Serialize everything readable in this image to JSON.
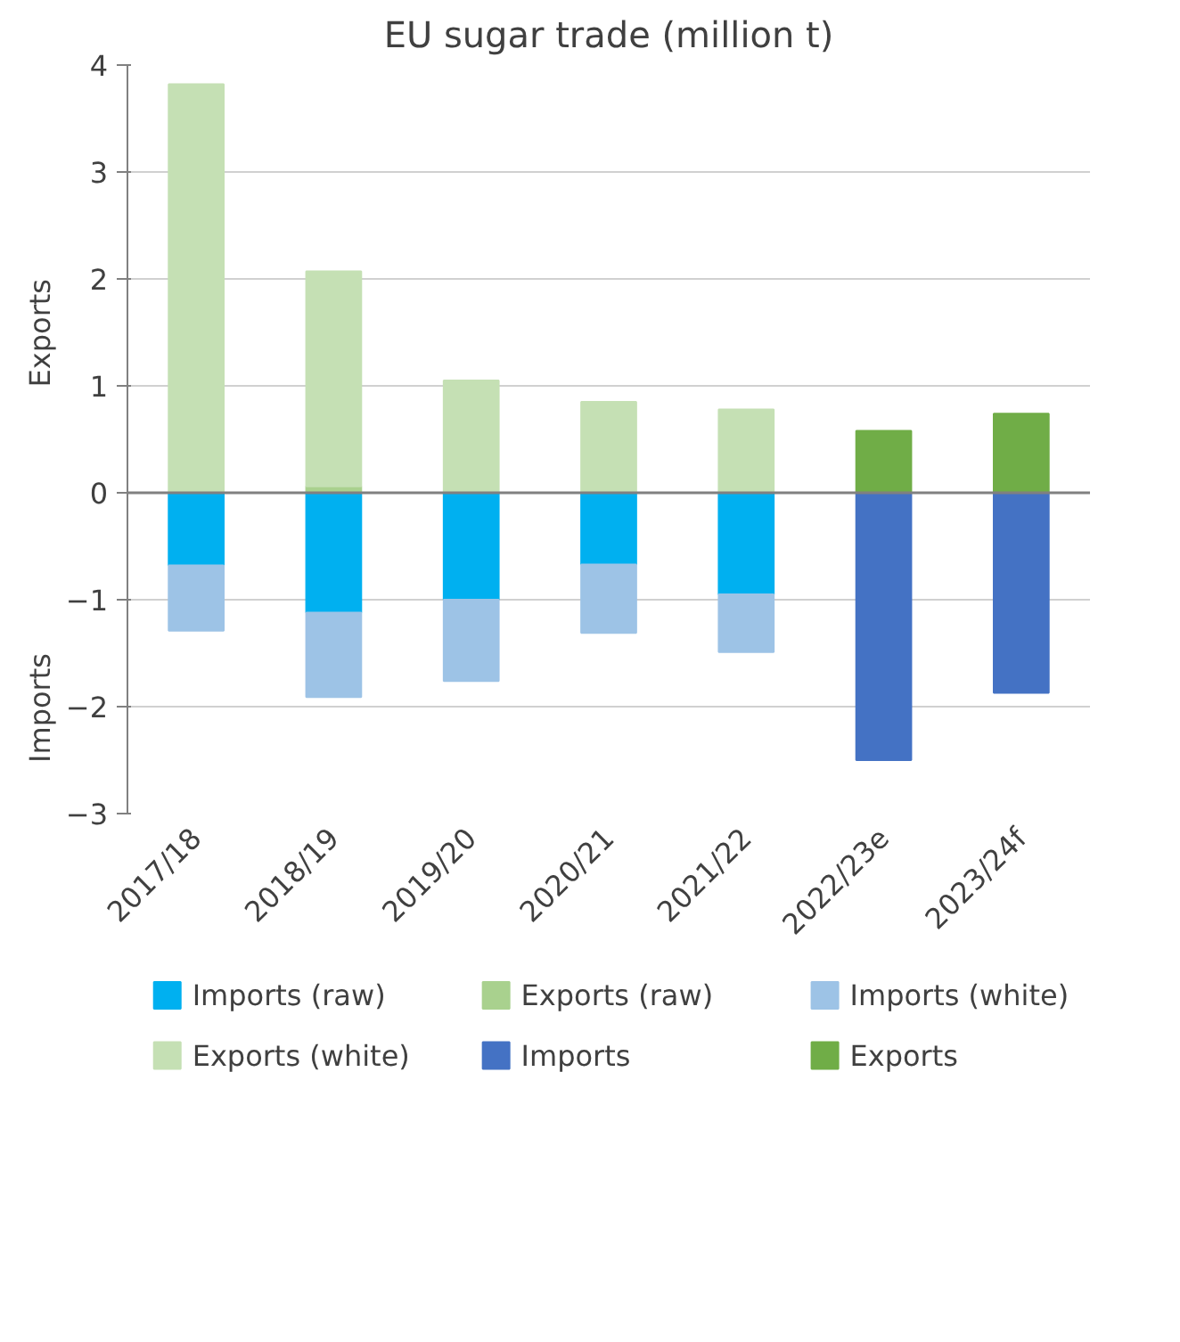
{
  "chart_data": {
    "type": "bar",
    "title": "EU sugar trade (million t)",
    "stacked": true,
    "categories": [
      "2017/18",
      "2018/19",
      "2019/20",
      "2020/21",
      "2021/22",
      "2022/23e",
      "2023/24f"
    ],
    "series": [
      {
        "name": "Imports (raw)",
        "color": "#00b0f0",
        "values": [
          -0.68,
          -1.12,
          -1.0,
          -0.67,
          -0.95,
          null,
          null
        ]
      },
      {
        "name": "Exports (raw)",
        "color": "#a9d18e",
        "values": [
          null,
          0.06,
          null,
          null,
          null,
          null,
          null
        ]
      },
      {
        "name": "Imports (white)",
        "color": "#9dc3e6",
        "values": [
          -0.61,
          -0.79,
          -0.76,
          -0.64,
          -0.54,
          null,
          null
        ]
      },
      {
        "name": "Exports (white)",
        "color": "#c5e0b4",
        "values": [
          3.82,
          2.01,
          1.05,
          0.85,
          0.78,
          null,
          null
        ]
      },
      {
        "name": "Imports",
        "color": "#4472c4",
        "values": [
          null,
          null,
          null,
          null,
          null,
          -2.5,
          -1.87
        ]
      },
      {
        "name": "Exports",
        "color": "#70ad47",
        "values": [
          null,
          null,
          null,
          null,
          null,
          0.58,
          0.74
        ]
      }
    ],
    "ylim": [
      -3,
      4
    ],
    "yticks": [
      -3,
      -2,
      -1,
      0,
      1,
      2,
      3,
      4
    ],
    "grid": "y",
    "legend": "bottom",
    "annotations": [
      "Exports",
      "Imports"
    ]
  }
}
